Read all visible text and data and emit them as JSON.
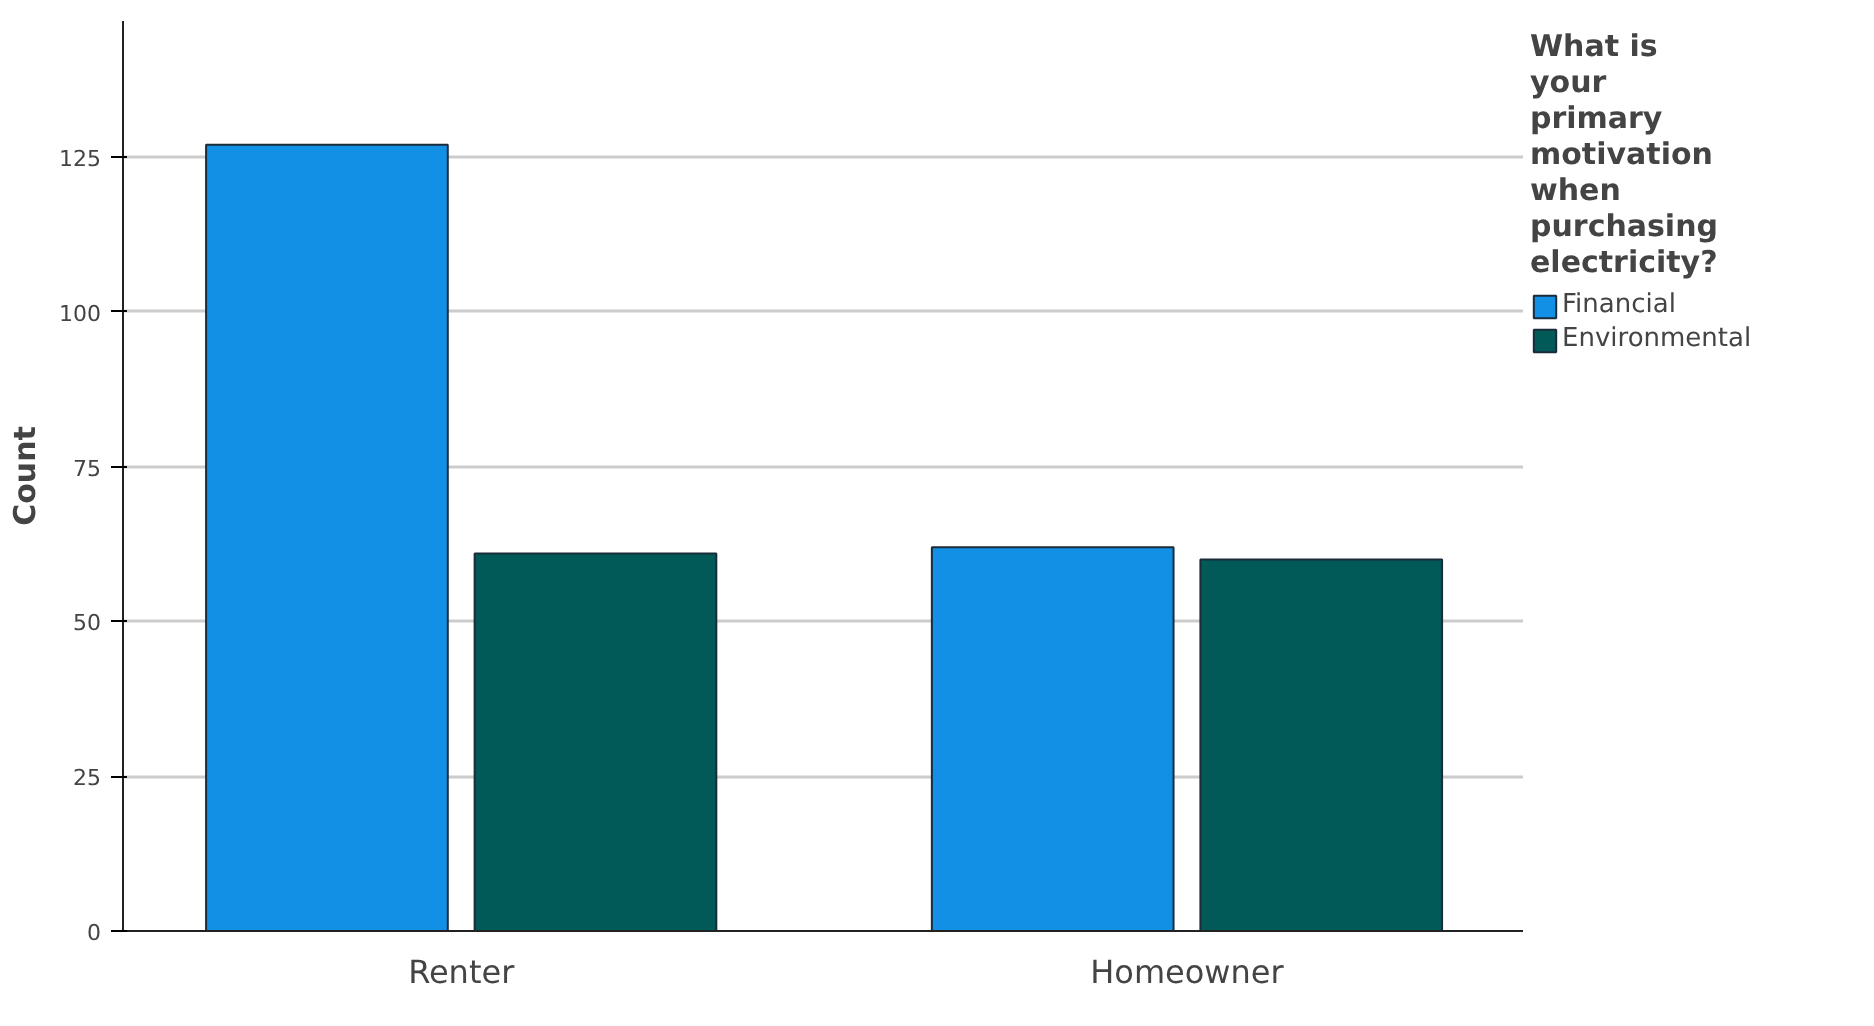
{
  "chart_data": {
    "type": "bar",
    "ylabel": "Count",
    "legend_title": "What is your primary motivation when purchasing electricity?",
    "categories": [
      "Renter",
      "Homeowner"
    ],
    "series": [
      {
        "name": "Financial",
        "color": "#1290e6",
        "values": [
          127,
          62
        ]
      },
      {
        "name": "Environmental",
        "color": "#025a58",
        "values": [
          61,
          60
        ]
      }
    ],
    "ylim": [
      0,
      147
    ],
    "yticks": [
      0,
      25,
      50,
      75,
      100,
      125
    ],
    "grid": "y",
    "legend": "right"
  }
}
